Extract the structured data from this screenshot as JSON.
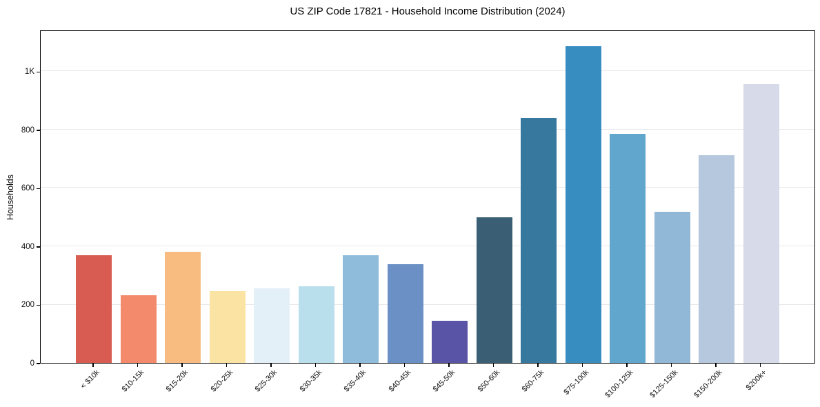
{
  "chart_data": {
    "type": "bar",
    "title": "US ZIP Code 17821 - Household Income Distribution (2024)",
    "xlabel": "",
    "ylabel": "Households",
    "categories": [
      "< $10k",
      "$10-15k",
      "$15-20k",
      "$20-25k",
      "$25-30k",
      "$30-35k",
      "$35-40k",
      "$40-45k",
      "$45-50k",
      "$50-60k",
      "$60-75k",
      "$75-100k",
      "$100-125k",
      "$125-150k",
      "$150-200k",
      "$200k+"
    ],
    "values": [
      370,
      231,
      381,
      247,
      255,
      262,
      370,
      338,
      145,
      500,
      840,
      1086,
      785,
      518,
      712,
      955
    ],
    "bar_colors": [
      "#d85c52",
      "#f48a6c",
      "#f9bc80",
      "#fbe3a4",
      "#e4f0f7",
      "#badfec",
      "#90bcdc",
      "#6a90c5",
      "#5a54a7",
      "#3a5f74",
      "#36789e",
      "#378cc0",
      "#60a6cd",
      "#92b8d8",
      "#b6c8de",
      "#d7dae8"
    ],
    "yticks": {
      "values": [
        0,
        200,
        400,
        600,
        800,
        1000
      ],
      "labels": [
        "0",
        "200",
        "400",
        "600",
        "800",
        "1K"
      ]
    },
    "ylim": [
      0,
      1143
    ],
    "grid": "horizontal-only",
    "gridline_color": "#e8e8ea",
    "legend": "none",
    "background_color": "#ffffff",
    "xtick_rotation_deg": 45
  }
}
